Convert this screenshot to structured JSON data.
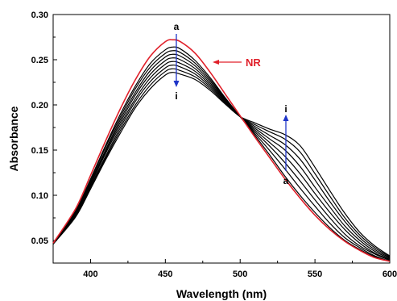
{
  "chart_data": {
    "type": "line",
    "xlabel": "Wavelength (nm)",
    "ylabel": "Absorbance",
    "xlim": [
      375,
      600
    ],
    "ylim": [
      0.025,
      0.3
    ],
    "xticks": [
      400,
      450,
      500,
      550,
      600
    ],
    "yticks": [
      0.05,
      0.1,
      0.15,
      0.2,
      0.25,
      0.3
    ],
    "ytick_labels": [
      "0.05",
      "0.10",
      "0.15",
      "0.20",
      "0.25",
      "0.30"
    ],
    "grid": false,
    "colors": {
      "nr": "#e0202a",
      "series": "#000000",
      "arrow": "#1f35c8"
    },
    "series": [
      {
        "name": "NR",
        "x": [
          375,
          390,
          400,
          410,
          420,
          430,
          440,
          450,
          455,
          460,
          470,
          480,
          490,
          500,
          510,
          520,
          530,
          540,
          550,
          560,
          570,
          580,
          590,
          600
        ],
        "y": [
          0.047,
          0.085,
          0.122,
          0.16,
          0.196,
          0.228,
          0.254,
          0.27,
          0.272,
          0.27,
          0.257,
          0.236,
          0.212,
          0.188,
          0.164,
          0.141,
          0.118,
          0.097,
          0.078,
          0.062,
          0.049,
          0.039,
          0.031,
          0.027
        ]
      },
      {
        "x": [
          375,
          390,
          400,
          410,
          420,
          430,
          440,
          450,
          455,
          460,
          470,
          480,
          490,
          500,
          510,
          520,
          530,
          540,
          550,
          560,
          570,
          580,
          590,
          600
        ],
        "y": [
          0.047,
          0.083,
          0.118,
          0.155,
          0.19,
          0.221,
          0.246,
          0.261,
          0.264,
          0.262,
          0.249,
          0.23,
          0.208,
          0.187,
          0.166,
          0.144,
          0.121,
          0.1,
          0.081,
          0.064,
          0.05,
          0.04,
          0.032,
          0.027
        ]
      },
      {
        "x": [
          375,
          390,
          400,
          410,
          420,
          430,
          440,
          450,
          455,
          460,
          470,
          480,
          490,
          500,
          510,
          520,
          530,
          540,
          550,
          560,
          570,
          580,
          590,
          600
        ],
        "y": [
          0.047,
          0.082,
          0.117,
          0.153,
          0.187,
          0.218,
          0.242,
          0.257,
          0.26,
          0.258,
          0.246,
          0.228,
          0.207,
          0.187,
          0.168,
          0.149,
          0.129,
          0.108,
          0.088,
          0.069,
          0.053,
          0.042,
          0.033,
          0.027
        ]
      },
      {
        "x": [
          375,
          390,
          400,
          410,
          420,
          430,
          440,
          450,
          455,
          460,
          470,
          480,
          490,
          500,
          510,
          520,
          530,
          540,
          550,
          560,
          570,
          580,
          590,
          600
        ],
        "y": [
          0.047,
          0.081,
          0.115,
          0.15,
          0.184,
          0.214,
          0.238,
          0.253,
          0.256,
          0.254,
          0.243,
          0.226,
          0.206,
          0.187,
          0.17,
          0.154,
          0.136,
          0.116,
          0.095,
          0.075,
          0.057,
          0.044,
          0.035,
          0.028
        ]
      },
      {
        "x": [
          375,
          390,
          400,
          410,
          420,
          430,
          440,
          450,
          455,
          460,
          470,
          480,
          490,
          500,
          510,
          520,
          530,
          540,
          550,
          560,
          570,
          580,
          590,
          600
        ],
        "y": [
          0.047,
          0.08,
          0.113,
          0.148,
          0.181,
          0.211,
          0.234,
          0.249,
          0.252,
          0.25,
          0.24,
          0.224,
          0.205,
          0.187,
          0.172,
          0.158,
          0.143,
          0.124,
          0.102,
          0.081,
          0.062,
          0.047,
          0.036,
          0.029
        ]
      },
      {
        "x": [
          375,
          390,
          400,
          410,
          420,
          430,
          440,
          450,
          455,
          460,
          470,
          480,
          490,
          500,
          510,
          520,
          530,
          540,
          550,
          560,
          570,
          580,
          590,
          600
        ],
        "y": [
          0.046,
          0.079,
          0.112,
          0.146,
          0.178,
          0.207,
          0.23,
          0.245,
          0.248,
          0.246,
          0.237,
          0.222,
          0.204,
          0.187,
          0.174,
          0.162,
          0.15,
          0.132,
          0.109,
          0.087,
          0.066,
          0.05,
          0.038,
          0.03
        ]
      },
      {
        "x": [
          375,
          390,
          400,
          410,
          420,
          430,
          440,
          450,
          455,
          460,
          470,
          480,
          490,
          500,
          510,
          520,
          530,
          540,
          550,
          560,
          570,
          580,
          590,
          600
        ],
        "y": [
          0.046,
          0.078,
          0.11,
          0.143,
          0.175,
          0.204,
          0.226,
          0.241,
          0.244,
          0.242,
          0.234,
          0.22,
          0.203,
          0.187,
          0.176,
          0.166,
          0.156,
          0.14,
          0.117,
          0.093,
          0.071,
          0.053,
          0.04,
          0.031
        ]
      },
      {
        "x": [
          375,
          390,
          400,
          410,
          420,
          430,
          440,
          450,
          455,
          460,
          470,
          480,
          490,
          500,
          510,
          520,
          530,
          540,
          550,
          560,
          570,
          580,
          590,
          600
        ],
        "y": [
          0.046,
          0.077,
          0.109,
          0.141,
          0.172,
          0.2,
          0.222,
          0.237,
          0.24,
          0.238,
          0.231,
          0.218,
          0.202,
          0.187,
          0.178,
          0.17,
          0.162,
          0.148,
          0.124,
          0.099,
          0.075,
          0.056,
          0.042,
          0.032
        ]
      },
      {
        "x": [
          375,
          390,
          400,
          410,
          420,
          430,
          440,
          450,
          455,
          460,
          470,
          480,
          490,
          500,
          510,
          520,
          530,
          540,
          550,
          560,
          570,
          580,
          590,
          600
        ],
        "y": [
          0.046,
          0.076,
          0.107,
          0.139,
          0.169,
          0.197,
          0.218,
          0.233,
          0.236,
          0.234,
          0.228,
          0.216,
          0.201,
          0.187,
          0.18,
          0.173,
          0.167,
          0.155,
          0.131,
          0.105,
          0.08,
          0.059,
          0.044,
          0.033
        ]
      }
    ],
    "annotations": {
      "nr_label": "NR",
      "peak_top": "a",
      "peak_bottom": "i",
      "shoulder_top": "i",
      "shoulder_bottom": "a"
    }
  }
}
